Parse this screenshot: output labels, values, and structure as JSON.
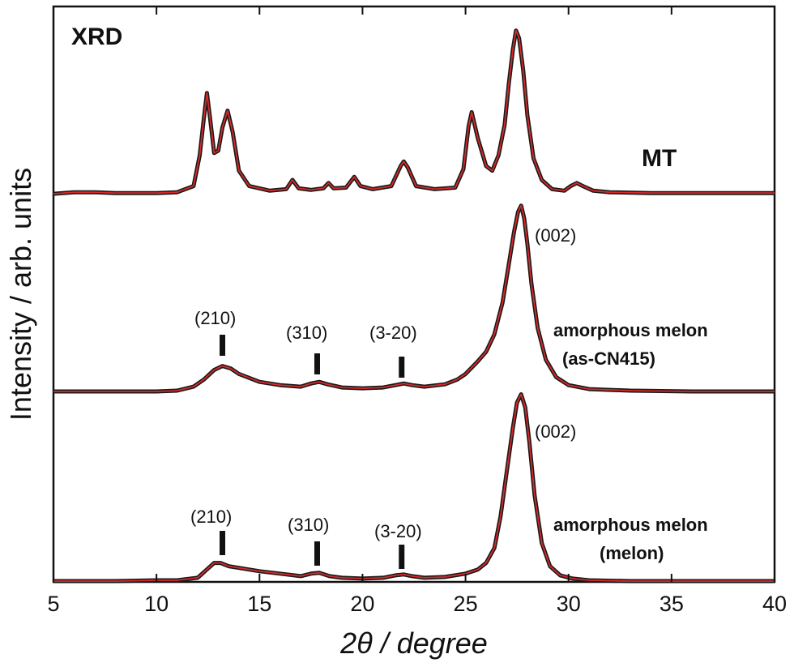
{
  "chart_data": {
    "type": "line",
    "title": "XRD",
    "xlabel": "2θ / degree",
    "ylabel": "Intensity / arb. units",
    "xlim": [
      5,
      40
    ],
    "xticks": [
      "5",
      "10",
      "15",
      "20",
      "25",
      "30",
      "35",
      "40"
    ],
    "y_ticks_shown": false,
    "grid": false,
    "colors": {
      "measured": "#1a1a1a",
      "fit": "#d62a2a"
    },
    "series": [
      {
        "name": "MT",
        "x": [
          5,
          6,
          7,
          8,
          9,
          10,
          11,
          11.8,
          12.1,
          12.3,
          12.45,
          12.6,
          12.8,
          13.0,
          13.2,
          13.45,
          13.7,
          14.0,
          14.5,
          15.5,
          16.3,
          16.6,
          16.9,
          17.5,
          18.1,
          18.35,
          18.6,
          19.2,
          19.6,
          19.9,
          20.5,
          21.4,
          21.85,
          22.0,
          22.2,
          22.6,
          23.5,
          24.5,
          24.9,
          25.15,
          25.3,
          25.6,
          26.0,
          26.3,
          26.6,
          26.9,
          27.1,
          27.3,
          27.45,
          27.6,
          27.8,
          28.0,
          28.3,
          28.7,
          29.2,
          29.8,
          30.1,
          30.4,
          30.7,
          31.2,
          32,
          34,
          36,
          38,
          40
        ],
        "y": [
          2,
          4,
          4,
          3,
          3,
          3,
          4,
          12,
          52,
          100,
          133,
          100,
          55,
          58,
          88,
          110,
          82,
          32,
          12,
          6,
          8,
          20,
          9,
          7,
          9,
          16,
          9,
          10,
          24,
          12,
          8,
          12,
          38,
          44,
          36,
          12,
          8,
          10,
          34,
          90,
          108,
          74,
          38,
          32,
          52,
          92,
          145,
          190,
          214,
          204,
          162,
          104,
          48,
          20,
          8,
          6,
          12,
          16,
          12,
          6,
          4,
          3,
          3,
          3,
          3
        ]
      },
      {
        "name": "amorphous melon (as-CN415)",
        "x": [
          5,
          8,
          10,
          11,
          11.8,
          12.3,
          12.8,
          13.2,
          13.6,
          14.0,
          14.5,
          15,
          16,
          17.0,
          17.5,
          17.9,
          18.3,
          19,
          20,
          21,
          21.6,
          22.0,
          22.4,
          23,
          24,
          24.6,
          25.0,
          25.3,
          25.6,
          26.0,
          26.4,
          26.8,
          27.1,
          27.35,
          27.55,
          27.7,
          27.85,
          28.0,
          28.2,
          28.5,
          28.9,
          29.4,
          30,
          31,
          33,
          36,
          40
        ],
        "y": [
          0,
          0,
          0,
          1,
          6,
          15,
          27,
          32,
          29,
          22,
          17,
          12,
          8,
          6,
          10,
          12,
          9,
          5,
          4,
          5,
          8,
          10,
          8,
          6,
          9,
          15,
          22,
          30,
          38,
          50,
          72,
          112,
          160,
          200,
          226,
          234,
          218,
          186,
          136,
          80,
          40,
          18,
          8,
          3,
          1,
          0,
          0
        ]
      },
      {
        "name": "amorphous melon (melon)",
        "x": [
          5,
          8,
          10,
          11,
          12.0,
          12.4,
          12.8,
          13.1,
          13.5,
          14,
          15,
          16,
          17.0,
          17.5,
          17.9,
          18.4,
          19,
          20,
          21,
          21.6,
          22.0,
          22.4,
          23,
          24,
          25,
          25.6,
          26.0,
          26.4,
          26.7,
          27.0,
          27.3,
          27.5,
          27.7,
          27.9,
          28.1,
          28.35,
          28.7,
          29.1,
          29.6,
          30.2,
          31,
          33,
          36,
          40
        ],
        "y": [
          0,
          0,
          1,
          1,
          4,
          13,
          22,
          22,
          18,
          16,
          12,
          9,
          6,
          9,
          10,
          6,
          4,
          3,
          4,
          7,
          8,
          6,
          4,
          5,
          9,
          14,
          22,
          40,
          78,
          132,
          186,
          216,
          226,
          210,
          168,
          104,
          46,
          18,
          7,
          3,
          1,
          0,
          0,
          0
        ]
      }
    ],
    "annotations": {
      "peak_002": "(002)",
      "refl_210": "(210)",
      "refl_310": "(310)",
      "refl_3m20": "(3-20)",
      "as_cn415_line1": "amorphous melon",
      "as_cn415_line2": "(as-CN415)",
      "melon_line1": "amorphous melon",
      "melon_line2": "(melon)",
      "mt_label": "MT"
    },
    "reflection_marker_positions_2theta": [
      13.2,
      17.8,
      21.9
    ]
  }
}
